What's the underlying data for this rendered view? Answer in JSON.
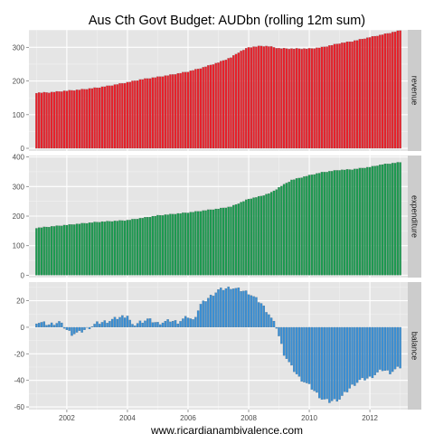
{
  "chart_data": {
    "type": "bar",
    "title": "Aus Cth Govt Budget: AUDbn (rolling 12m sum)",
    "xlabel": "www.ricardianambivalence.com",
    "x_ticks": [
      "2002",
      "2004",
      "2006",
      "2008",
      "2010",
      "2012"
    ],
    "x_range": [
      "2000-10",
      "2013-04"
    ],
    "series_start": "2001-01",
    "grid": true,
    "panels": [
      {
        "name": "revenue",
        "color": "#e8202a",
        "ylim": [
          -8,
          352
        ],
        "y_ticks": [
          0,
          100,
          200,
          300
        ],
        "anchors": [
          [
            "2001-01",
            165
          ],
          [
            "2001-06",
            166
          ],
          [
            "2002-01",
            171
          ],
          [
            "2002-06",
            174
          ],
          [
            "2003-01",
            180
          ],
          [
            "2003-06",
            186
          ],
          [
            "2004-01",
            196
          ],
          [
            "2004-06",
            204
          ],
          [
            "2005-01",
            212
          ],
          [
            "2005-06",
            218
          ],
          [
            "2006-01",
            228
          ],
          [
            "2006-06",
            238
          ],
          [
            "2007-01",
            255
          ],
          [
            "2007-06",
            270
          ],
          [
            "2007-09",
            285
          ],
          [
            "2008-01",
            300
          ],
          [
            "2008-06",
            304
          ],
          [
            "2008-09",
            303
          ],
          [
            "2009-01",
            297
          ],
          [
            "2009-06",
            296
          ],
          [
            "2010-01",
            296
          ],
          [
            "2010-06",
            300
          ],
          [
            "2011-01",
            312
          ],
          [
            "2011-06",
            318
          ],
          [
            "2012-01",
            330
          ],
          [
            "2012-06",
            338
          ],
          [
            "2013-01",
            350
          ]
        ]
      },
      {
        "name": "expenditure",
        "color": "#1c9a50",
        "ylim": [
          -8,
          405
        ],
        "y_ticks": [
          0,
          100,
          200,
          300,
          400
        ],
        "anchors": [
          [
            "2001-01",
            160
          ],
          [
            "2002-01",
            170
          ],
          [
            "2003-01",
            180
          ],
          [
            "2004-01",
            186
          ],
          [
            "2005-01",
            202
          ],
          [
            "2006-01",
            212
          ],
          [
            "2007-01",
            225
          ],
          [
            "2007-06",
            232
          ],
          [
            "2008-01",
            258
          ],
          [
            "2008-06",
            268
          ],
          [
            "2008-10",
            280
          ],
          [
            "2009-01",
            297
          ],
          [
            "2009-03",
            307
          ],
          [
            "2009-06",
            322
          ],
          [
            "2010-01",
            338
          ],
          [
            "2010-06",
            348
          ],
          [
            "2011-01",
            356
          ],
          [
            "2011-06",
            358
          ],
          [
            "2012-01",
            366
          ],
          [
            "2012-06",
            375
          ],
          [
            "2013-01",
            382
          ]
        ]
      },
      {
        "name": "balance",
        "color": "#3a8fd4",
        "ylim": [
          -62,
          34
        ],
        "y_ticks": [
          -60,
          -40,
          -20,
          0,
          20
        ],
        "anchors": [
          [
            "2001-01",
            4
          ],
          [
            "2001-04",
            3
          ],
          [
            "2001-06",
            2
          ],
          [
            "2001-08",
            3
          ],
          [
            "2001-10",
            4
          ],
          [
            "2002-01",
            -2
          ],
          [
            "2002-03",
            -5
          ],
          [
            "2002-06",
            -4
          ],
          [
            "2002-09",
            -1
          ],
          [
            "2003-01",
            3
          ],
          [
            "2003-06",
            5
          ],
          [
            "2003-09",
            7
          ],
          [
            "2004-01",
            9
          ],
          [
            "2004-03",
            1
          ],
          [
            "2004-06",
            4
          ],
          [
            "2004-09",
            6
          ],
          [
            "2005-01",
            3
          ],
          [
            "2005-06",
            5
          ],
          [
            "2005-09",
            4
          ],
          [
            "2006-01",
            8
          ],
          [
            "2006-03",
            5
          ],
          [
            "2006-06",
            17
          ],
          [
            "2006-09",
            22
          ],
          [
            "2007-01",
            28
          ],
          [
            "2007-06",
            30
          ],
          [
            "2007-10",
            28
          ],
          [
            "2008-01",
            26
          ],
          [
            "2008-06",
            18
          ],
          [
            "2008-09",
            10
          ],
          [
            "2008-12",
            0
          ],
          [
            "2009-03",
            -20
          ],
          [
            "2009-06",
            -30
          ],
          [
            "2009-09",
            -38
          ],
          [
            "2010-01",
            -44
          ],
          [
            "2010-06",
            -54
          ],
          [
            "2010-09",
            -56
          ],
          [
            "2011-01",
            -54
          ],
          [
            "2011-06",
            -44
          ],
          [
            "2011-09",
            -40
          ],
          [
            "2012-01",
            -38
          ],
          [
            "2012-06",
            -32
          ],
          [
            "2012-09",
            -34
          ],
          [
            "2013-01",
            -30
          ]
        ]
      }
    ]
  }
}
